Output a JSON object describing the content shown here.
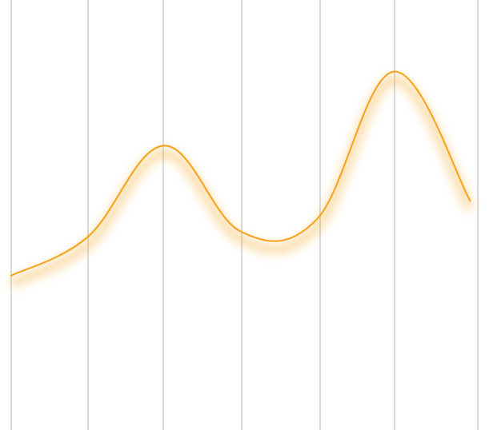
{
  "chart_data": {
    "type": "line",
    "title": "",
    "xlabel": "",
    "ylabel": "",
    "grid": "vertical",
    "legend": "none",
    "x": [
      0,
      1,
      2,
      3,
      4,
      5,
      6
    ],
    "xlim": [
      0,
      6.1
    ],
    "ylim": [
      0,
      538
    ],
    "series": [
      {
        "values": [
          188,
          237,
          353,
          244,
          260,
          447,
          283
        ],
        "color": "#f5a623"
      }
    ],
    "gridline_color": "#d9d9d9"
  }
}
